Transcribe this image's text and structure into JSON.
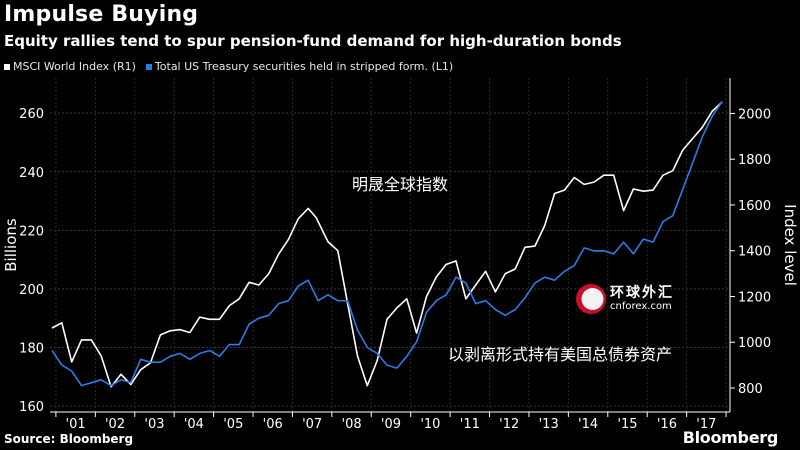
{
  "header": {
    "title": "Impulse Buying",
    "subtitle": "Equity rallies tend to spur pension-fund demand for high-duration bonds"
  },
  "legend": [
    {
      "label": "MSCI World Index  (R1)",
      "color": "#ffffff"
    },
    {
      "label": "Total US Treasury securities held in stripped form.  (L1)",
      "color": "#2b7ce6"
    }
  ],
  "annotations": {
    "white_line_cn": "明晟全球指数",
    "blue_line_cn": "以剥离形式持有美国总债券资产"
  },
  "watermark": {
    "cn": "环球外汇",
    "en": "cnforex.com"
  },
  "footer": {
    "source": "Source: Bloomberg",
    "brand": "Bloomberg"
  },
  "chart_data": {
    "type": "line",
    "title": "Impulse Buying",
    "ylabel_left": "Billions",
    "ylabel_right": "Index level",
    "ylim_left": [
      158,
      272
    ],
    "ylim_right": [
      695,
      2155
    ],
    "left_ticks": [
      160,
      180,
      200,
      220,
      240,
      260
    ],
    "right_ticks": [
      800,
      1000,
      1200,
      1400,
      1600,
      1800,
      2000
    ],
    "xlim": [
      2000.85,
      2018.1
    ],
    "x_tick_labels": [
      {
        "label": "'01",
        "x": 2001.5
      },
      {
        "label": "'02",
        "x": 2002.5
      },
      {
        "label": "'03",
        "x": 2003.5
      },
      {
        "label": "'04",
        "x": 2004.5
      },
      {
        "label": "'05",
        "x": 2005.5
      },
      {
        "label": "'06",
        "x": 2006.5
      },
      {
        "label": "'07",
        "x": 2007.5
      },
      {
        "label": "'08",
        "x": 2008.5
      },
      {
        "label": "'09",
        "x": 2009.5
      },
      {
        "label": "'10",
        "x": 2010.5
      },
      {
        "label": "'11",
        "x": 2011.5
      },
      {
        "label": "'12",
        "x": 2012.5
      },
      {
        "label": "'13",
        "x": 2013.5
      },
      {
        "label": "'14",
        "x": 2014.5
      },
      {
        "label": "'15",
        "x": 2015.5
      },
      {
        "label": "'16",
        "x": 2016.5
      },
      {
        "label": "'17",
        "x": 2017.5
      }
    ],
    "series": [
      {
        "name": "MSCI World Index (R1)",
        "axis": "right",
        "color": "#ffffff",
        "points": [
          [
            2000.9,
            1062
          ],
          [
            2001.15,
            1085
          ],
          [
            2001.4,
            914
          ],
          [
            2001.65,
            1010
          ],
          [
            2001.9,
            1010
          ],
          [
            2002.15,
            940
          ],
          [
            2002.4,
            805
          ],
          [
            2002.65,
            860
          ],
          [
            2002.9,
            815
          ],
          [
            2003.15,
            880
          ],
          [
            2003.4,
            910
          ],
          [
            2003.65,
            1032
          ],
          [
            2003.9,
            1050
          ],
          [
            2004.15,
            1055
          ],
          [
            2004.4,
            1042
          ],
          [
            2004.65,
            1110
          ],
          [
            2004.9,
            1100
          ],
          [
            2005.15,
            1100
          ],
          [
            2005.4,
            1160
          ],
          [
            2005.65,
            1190
          ],
          [
            2005.9,
            1262
          ],
          [
            2006.15,
            1250
          ],
          [
            2006.4,
            1300
          ],
          [
            2006.65,
            1385
          ],
          [
            2006.9,
            1450
          ],
          [
            2007.15,
            1540
          ],
          [
            2007.4,
            1585
          ],
          [
            2007.6,
            1545
          ],
          [
            2007.9,
            1440
          ],
          [
            2008.15,
            1400
          ],
          [
            2008.4,
            1170
          ],
          [
            2008.65,
            940
          ],
          [
            2008.9,
            810
          ],
          [
            2009.15,
            920
          ],
          [
            2009.4,
            1100
          ],
          [
            2009.65,
            1150
          ],
          [
            2009.9,
            1190
          ],
          [
            2010.15,
            1040
          ],
          [
            2010.4,
            1200
          ],
          [
            2010.65,
            1285
          ],
          [
            2010.9,
            1340
          ],
          [
            2011.15,
            1355
          ],
          [
            2011.4,
            1190
          ],
          [
            2011.65,
            1250
          ],
          [
            2011.9,
            1310
          ],
          [
            2012.15,
            1220
          ],
          [
            2012.4,
            1300
          ],
          [
            2012.65,
            1320
          ],
          [
            2012.9,
            1415
          ],
          [
            2013.15,
            1420
          ],
          [
            2013.4,
            1510
          ],
          [
            2013.65,
            1650
          ],
          [
            2013.9,
            1665
          ],
          [
            2014.15,
            1720
          ],
          [
            2014.4,
            1690
          ],
          [
            2014.65,
            1700
          ],
          [
            2014.9,
            1730
          ],
          [
            2015.15,
            1730
          ],
          [
            2015.4,
            1575
          ],
          [
            2015.65,
            1670
          ],
          [
            2015.9,
            1660
          ],
          [
            2016.15,
            1665
          ],
          [
            2016.4,
            1730
          ],
          [
            2016.65,
            1750
          ],
          [
            2016.9,
            1840
          ],
          [
            2017.15,
            1890
          ],
          [
            2017.4,
            1940
          ],
          [
            2017.65,
            2010
          ],
          [
            2017.9,
            2050
          ]
        ]
      },
      {
        "name": "Total US Treasury securities held in stripped form. (L1)",
        "axis": "left",
        "color": "#2b7ce6",
        "points": [
          [
            2000.9,
            179
          ],
          [
            2001.15,
            174
          ],
          [
            2001.4,
            172
          ],
          [
            2001.65,
            167
          ],
          [
            2001.9,
            168
          ],
          [
            2002.15,
            169
          ],
          [
            2002.4,
            167
          ],
          [
            2002.65,
            169
          ],
          [
            2002.9,
            168
          ],
          [
            2003.15,
            176
          ],
          [
            2003.4,
            175
          ],
          [
            2003.65,
            175
          ],
          [
            2003.9,
            177
          ],
          [
            2004.15,
            178
          ],
          [
            2004.4,
            176
          ],
          [
            2004.65,
            178
          ],
          [
            2004.9,
            179
          ],
          [
            2005.15,
            177
          ],
          [
            2005.4,
            181
          ],
          [
            2005.65,
            181
          ],
          [
            2005.9,
            188
          ],
          [
            2006.15,
            190
          ],
          [
            2006.4,
            191
          ],
          [
            2006.65,
            195
          ],
          [
            2006.9,
            196
          ],
          [
            2007.15,
            201
          ],
          [
            2007.4,
            203
          ],
          [
            2007.65,
            196
          ],
          [
            2007.9,
            198
          ],
          [
            2008.15,
            196
          ],
          [
            2008.4,
            196
          ],
          [
            2008.65,
            186
          ],
          [
            2008.9,
            180
          ],
          [
            2009.15,
            178
          ],
          [
            2009.4,
            174
          ],
          [
            2009.65,
            173
          ],
          [
            2009.9,
            177
          ],
          [
            2010.15,
            182
          ],
          [
            2010.4,
            192
          ],
          [
            2010.65,
            196
          ],
          [
            2010.9,
            198
          ],
          [
            2011.15,
            204
          ],
          [
            2011.4,
            202
          ],
          [
            2011.65,
            195
          ],
          [
            2011.9,
            196
          ],
          [
            2012.15,
            193
          ],
          [
            2012.4,
            191
          ],
          [
            2012.65,
            193
          ],
          [
            2012.9,
            197
          ],
          [
            2013.15,
            202
          ],
          [
            2013.4,
            204
          ],
          [
            2013.65,
            203
          ],
          [
            2013.9,
            206
          ],
          [
            2014.15,
            208
          ],
          [
            2014.4,
            214
          ],
          [
            2014.65,
            213
          ],
          [
            2014.9,
            213
          ],
          [
            2015.15,
            212
          ],
          [
            2015.4,
            216
          ],
          [
            2015.65,
            212
          ],
          [
            2015.9,
            217
          ],
          [
            2016.15,
            216
          ],
          [
            2016.4,
            223
          ],
          [
            2016.65,
            225
          ],
          [
            2016.9,
            234
          ],
          [
            2017.15,
            243
          ],
          [
            2017.4,
            252
          ],
          [
            2017.65,
            259
          ],
          [
            2017.9,
            264
          ]
        ]
      }
    ]
  }
}
